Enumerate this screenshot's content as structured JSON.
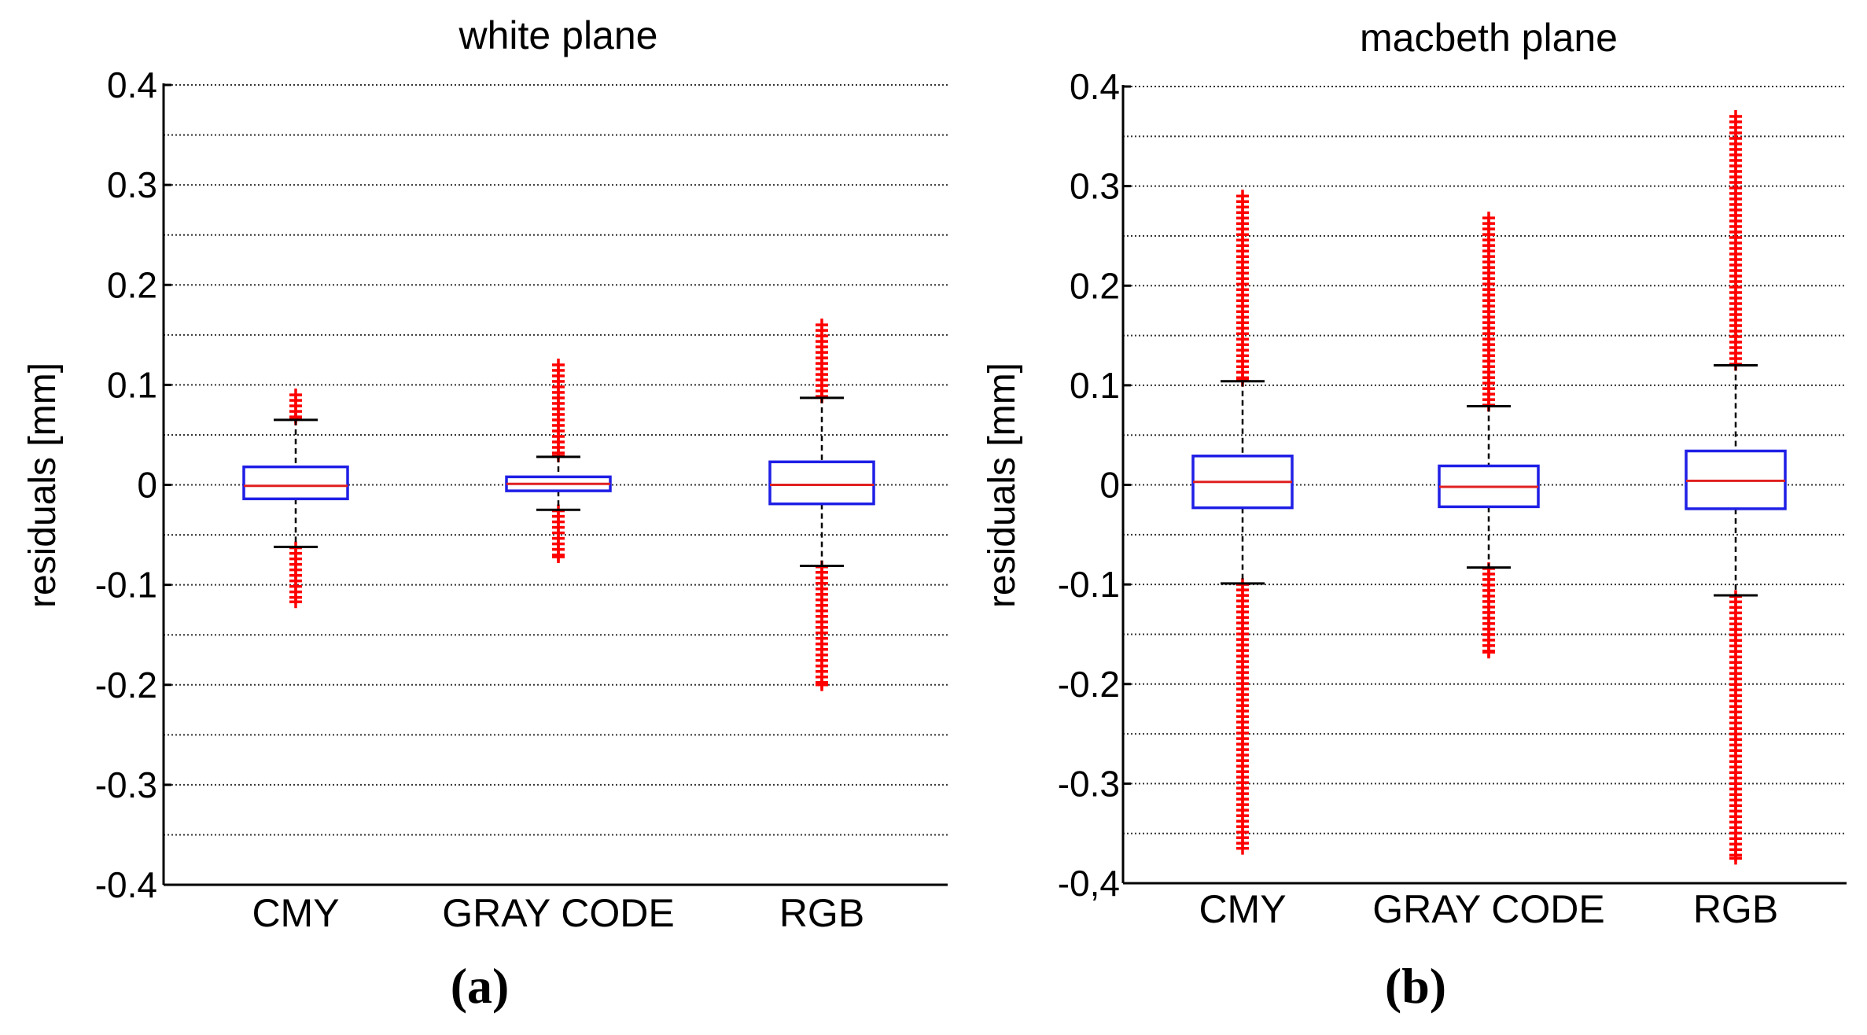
{
  "chart_data": [
    {
      "type": "box",
      "title": "white plane",
      "panel_label": "(a)",
      "xlabel": "",
      "ylabel": "residuals [mm]",
      "ylim": [
        -0.4,
        0.4
      ],
      "yticks": [
        -0.4,
        -0.3,
        -0.2,
        -0.1,
        0,
        0.1,
        0.2,
        0.3,
        0.4
      ],
      "ytick_labels": [
        "-0.4",
        "-0.3",
        "-0.2",
        "-0.1",
        "0",
        "0.1",
        "0.2",
        "0.3",
        "0.4"
      ],
      "grid": "dotted horizontal every 0.05",
      "categories": [
        "CMY",
        "GRAY CODE",
        "RGB"
      ],
      "boxes": [
        {
          "name": "CMY",
          "median": -0.001,
          "q1": -0.014,
          "q3": 0.018,
          "whisker_low": -0.062,
          "whisker_high": 0.065,
          "outliers_low": [
            -0.063,
            -0.117
          ],
          "outliers_high": [
            0.066,
            0.09
          ]
        },
        {
          "name": "GRAY CODE",
          "median": 0.001,
          "q1": -0.006,
          "q3": 0.008,
          "whisker_low": -0.025,
          "whisker_high": 0.028,
          "outliers_low": [
            -0.026,
            -0.072
          ],
          "outliers_high": [
            0.029,
            0.12
          ]
        },
        {
          "name": "RGB",
          "median": 0.0,
          "q1": -0.019,
          "q3": 0.023,
          "whisker_low": -0.081,
          "whisker_high": 0.087,
          "outliers_low": [
            -0.082,
            -0.2
          ],
          "outliers_high": [
            0.088,
            0.16
          ]
        }
      ]
    },
    {
      "type": "box",
      "title": "macbeth plane",
      "panel_label": "(b)",
      "xlabel": "",
      "ylabel": "residuals [mm]",
      "ylim": [
        -0.4,
        0.4
      ],
      "yticks": [
        -0.4,
        -0.3,
        -0.2,
        -0.1,
        0,
        0.1,
        0.2,
        0.3,
        0.4
      ],
      "ytick_labels": [
        "-0,4",
        "-0.3",
        "-0.2",
        "-0.1",
        "0",
        "0.1",
        "0.2",
        "0.3",
        "0.4"
      ],
      "grid": "dotted horizontal every 0.05",
      "categories": [
        "CMY",
        "GRAY CODE",
        "RGB"
      ],
      "boxes": [
        {
          "name": "CMY",
          "median": 0.003,
          "q1": -0.023,
          "q3": 0.029,
          "whisker_low": -0.099,
          "whisker_high": 0.104,
          "outliers_low": [
            -0.1,
            -0.365
          ],
          "outliers_high": [
            0.105,
            0.29
          ]
        },
        {
          "name": "GRAY CODE",
          "median": -0.002,
          "q1": -0.022,
          "q3": 0.019,
          "whisker_low": -0.083,
          "whisker_high": 0.079,
          "outliers_low": [
            -0.084,
            -0.168
          ],
          "outliers_high": [
            0.08,
            0.268
          ]
        },
        {
          "name": "RGB",
          "median": 0.004,
          "q1": -0.024,
          "q3": 0.034,
          "whisker_low": -0.111,
          "whisker_high": 0.12,
          "outliers_low": [
            -0.112,
            -0.375
          ],
          "outliers_high": [
            0.121,
            0.37
          ]
        }
      ]
    }
  ],
  "colors": {
    "box": "#1f1fe6",
    "median": "#e02020",
    "outlier": "#ff0000",
    "axis": "#000000",
    "grid": "#333333"
  }
}
